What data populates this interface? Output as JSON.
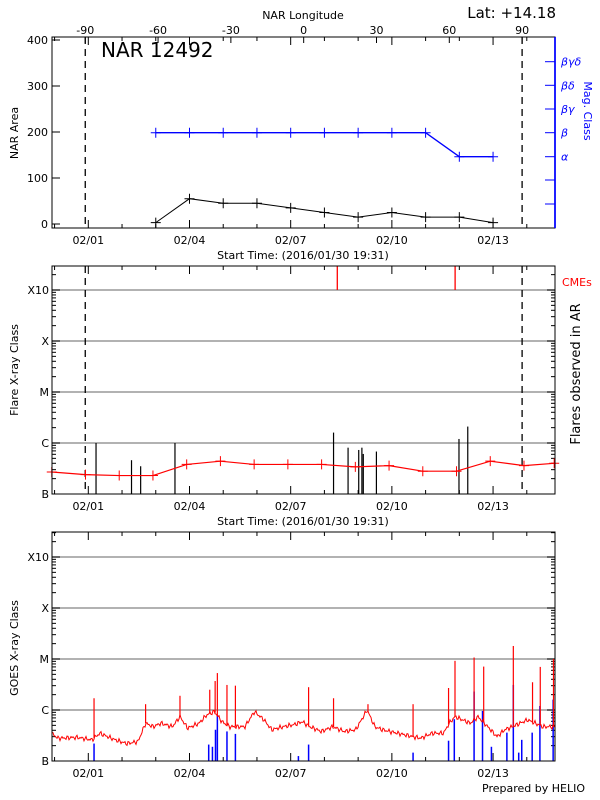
{
  "header": {
    "lat_label": "Lat: +14.18",
    "region_label": "NAR 12492"
  },
  "footer": {
    "credit": "Prepared by HELIO"
  },
  "colors": {
    "axis": "#000000",
    "area": "#000000",
    "mag_class": "#0000ff",
    "flare_avg": "#ff0000",
    "cme": "#ff0000",
    "goes_flux": "#ff0000",
    "goes_events": "#0000ff",
    "grid": "#999999"
  },
  "chart_data": [
    {
      "type": "line",
      "title": "NAR 12492",
      "xlabel": "Start Time: (2016/01/30 19:31)",
      "ylabel": "NAR Area",
      "right_ylabel": "Mag. Class",
      "top_xlabel": "NAR Longitude",
      "ylim": [
        0,
        400
      ],
      "yticks": [
        "0",
        "100",
        "200",
        "300",
        "400"
      ],
      "xticks": [
        "02/01",
        "02/04",
        "02/07",
        "02/10",
        "02/13"
      ],
      "top_xticks": [
        "-90",
        "-60",
        "-30",
        "0",
        "30",
        "60",
        "90"
      ],
      "right_yticks": [
        "α",
        "β",
        "βγ",
        "βδ",
        "βγδ"
      ],
      "limb_longitudes": [
        -90,
        90
      ],
      "limb_times": [
        "01/31 21:50",
        "02/13 20:40"
      ],
      "area_series": [
        {
          "t": "02/03 00:00",
          "v": 3
        },
        {
          "t": "02/04 00:00",
          "v": 55
        },
        {
          "t": "02/05 00:00",
          "v": 45
        },
        {
          "t": "02/06 00:00",
          "v": 45
        },
        {
          "t": "02/07 00:00",
          "v": 35
        },
        {
          "t": "02/08 00:00",
          "v": 25
        },
        {
          "t": "02/09 00:00",
          "v": 15
        },
        {
          "t": "02/10 00:00",
          "v": 25
        },
        {
          "t": "02/11 00:00",
          "v": 15
        },
        {
          "t": "02/12 00:00",
          "v": 15
        },
        {
          "t": "02/13 00:00",
          "v": 3
        }
      ],
      "mag_class_series": [
        {
          "t": "02/03 00:00",
          "cls": "β"
        },
        {
          "t": "02/04 00:00",
          "cls": "β"
        },
        {
          "t": "02/05 00:00",
          "cls": "β"
        },
        {
          "t": "02/06 00:00",
          "cls": "β"
        },
        {
          "t": "02/07 00:00",
          "cls": "β"
        },
        {
          "t": "02/08 00:00",
          "cls": "β"
        },
        {
          "t": "02/09 00:00",
          "cls": "β"
        },
        {
          "t": "02/10 00:00",
          "cls": "β"
        },
        {
          "t": "02/11 00:00",
          "cls": "β"
        },
        {
          "t": "02/12 00:00",
          "cls": "α"
        },
        {
          "t": "02/13 00:00",
          "cls": "α"
        }
      ]
    },
    {
      "type": "bar",
      "xlabel": "Start Time: (2016/01/30 19:31)",
      "ylabel": "Flare X-ray Class",
      "right_ylabel": "Flares observed in AR",
      "cme_label": "CMEs",
      "yscale": "log",
      "yticks": [
        "B",
        "C",
        "M",
        "X",
        "X10"
      ],
      "ylim_flux": [
        1e-07,
        0.003
      ],
      "grid": true,
      "xticks": [
        "02/01",
        "02/04",
        "02/07",
        "02/10",
        "02/13"
      ],
      "limb_times": [
        "01/31 21:50",
        "02/13 20:40"
      ],
      "flares": [
        {
          "t": "02/01 05:30",
          "flux": 1e-06
        },
        {
          "t": "02/02 06:45",
          "flux": 4.6e-07
        },
        {
          "t": "02/02 13:15",
          "flux": 3.5e-07
        },
        {
          "t": "02/03 13:40",
          "flux": 1e-06
        },
        {
          "t": "02/08 06:30",
          "flux": 1.6e-06
        },
        {
          "t": "02/08 16:50",
          "flux": 8.1e-07
        },
        {
          "t": "02/09 00:25",
          "flux": 7.3e-07
        },
        {
          "t": "02/09 02:40",
          "flux": 8.1e-07
        },
        {
          "t": "02/09 03:40",
          "flux": 6.1e-07
        },
        {
          "t": "02/09 13:00",
          "flux": 6.8e-07
        },
        {
          "t": "02/11 23:45",
          "flux": 1.2e-06
        },
        {
          "t": "02/12 06:00",
          "flux": 2.1e-06
        }
      ],
      "cmes": [
        {
          "t": "02/08 09:10"
        },
        {
          "t": "02/11 21:00"
        }
      ],
      "background_series": [
        {
          "t": "01/30 22:00",
          "flux": 2.7e-07
        },
        {
          "t": "01/31 22:00",
          "flux": 2.4e-07
        },
        {
          "t": "02/01 22:00",
          "flux": 2.3e-07
        },
        {
          "t": "02/02 22:00",
          "flux": 2.3e-07
        },
        {
          "t": "02/03 22:00",
          "flux": 3.8e-07
        },
        {
          "t": "02/04 22:00",
          "flux": 4.4e-07
        },
        {
          "t": "02/05 22:00",
          "flux": 3.8e-07
        },
        {
          "t": "02/06 22:00",
          "flux": 3.8e-07
        },
        {
          "t": "02/07 22:00",
          "flux": 3.8e-07
        },
        {
          "t": "02/08 22:00",
          "flux": 3.4e-07
        },
        {
          "t": "02/09 22:00",
          "flux": 3.6e-07
        },
        {
          "t": "02/10 22:00",
          "flux": 2.8e-07
        },
        {
          "t": "02/11 22:00",
          "flux": 2.8e-07
        },
        {
          "t": "02/12 22:00",
          "flux": 4.4e-07
        },
        {
          "t": "02/13 22:00",
          "flux": 3.6e-07
        },
        {
          "t": "02/14 19:30",
          "flux": 4e-07
        }
      ]
    },
    {
      "type": "line",
      "ylabel": "GOES X-ray Class",
      "yscale": "log",
      "yticks": [
        "B",
        "C",
        "M",
        "X",
        "X10"
      ],
      "ylim_flux": [
        1e-07,
        0.003
      ],
      "grid": true,
      "xticks": [
        "02/01",
        "02/04",
        "02/07",
        "02/10",
        "02/13"
      ],
      "flux_series": [
        {
          "t": "01/30 22:10",
          "flux": 3.5e-07
        },
        {
          "t": "01/31 02:15",
          "flux": 2.8e-07
        },
        {
          "t": "01/31 16:10",
          "flux": 2.9e-07
        },
        {
          "t": "02/01 02:40",
          "flux": 2.6e-07
        },
        {
          "t": "02/01 08:10",
          "flux": 3.5e-07
        },
        {
          "t": "02/01 19:00",
          "flux": 2.6e-07
        },
        {
          "t": "02/02 03:10",
          "flux": 2.2e-07
        },
        {
          "t": "02/02 11:20",
          "flux": 2.4e-07
        },
        {
          "t": "02/02 16:46",
          "flux": 5.5e-07
        },
        {
          "t": "02/02 22:12",
          "flux": 4.7e-07
        },
        {
          "t": "02/03 03:40",
          "flux": 5.5e-07
        },
        {
          "t": "02/03 11:47",
          "flux": 4.7e-07
        },
        {
          "t": "02/03 17:14",
          "flux": 7.4e-07
        },
        {
          "t": "02/03 22:40",
          "flux": 4.4e-07
        },
        {
          "t": "02/04 06:49",
          "flux": 5.5e-07
        },
        {
          "t": "02/04 12:16",
          "flux": 8e-07
        },
        {
          "t": "02/04 17:41",
          "flux": 9.3e-07
        },
        {
          "t": "02/04 23:08",
          "flux": 5.9e-07
        },
        {
          "t": "02/05 04:34",
          "flux": 4.7e-07
        },
        {
          "t": "02/05 15:26",
          "flux": 4.7e-07
        },
        {
          "t": "02/05 22:13",
          "flux": 9.3e-07
        },
        {
          "t": "02/06 05:01",
          "flux": 6.4e-07
        },
        {
          "t": "02/06 10:28",
          "flux": 4.1e-07
        },
        {
          "t": "02/06 18:37",
          "flux": 4.7e-07
        },
        {
          "t": "02/07 02:47",
          "flux": 5.2e-07
        },
        {
          "t": "02/07 08:12",
          "flux": 5.9e-07
        },
        {
          "t": "02/07 13:39",
          "flux": 4.7e-07
        },
        {
          "t": "02/07 21:48",
          "flux": 3.8e-07
        },
        {
          "t": "02/08 05:57",
          "flux": 4.7e-07
        },
        {
          "t": "02/08 14:07",
          "flux": 3.8e-07
        },
        {
          "t": "02/08 22:16",
          "flux": 4.1e-07
        },
        {
          "t": "02/09 06:25",
          "flux": 1e-06
        },
        {
          "t": "02/09 11:51",
          "flux": 4.7e-07
        },
        {
          "t": "02/09 17:17",
          "flux": 4.1e-07
        },
        {
          "t": "02/10 04:09",
          "flux": 3.5e-07
        },
        {
          "t": "02/10 15:01",
          "flux": 3e-07
        },
        {
          "t": "02/10 20:28",
          "flux": 2.8e-07
        },
        {
          "t": "02/11 04:37",
          "flux": 3.5e-07
        },
        {
          "t": "02/11 12:46",
          "flux": 3.5e-07
        },
        {
          "t": "02/11 16:51",
          "flux": 5.5e-07
        },
        {
          "t": "02/11 20:56",
          "flux": 7.4e-07
        },
        {
          "t": "02/12 02:21",
          "flux": 6.4e-07
        },
        {
          "t": "02/12 07:48",
          "flux": 5.5e-07
        },
        {
          "t": "02/12 13:14",
          "flux": 7.4e-07
        },
        {
          "t": "02/12 18:40",
          "flux": 5.2e-07
        },
        {
          "t": "02/13 02:50",
          "flux": 3e-07
        },
        {
          "t": "02/13 08:15",
          "flux": 4.1e-07
        },
        {
          "t": "02/13 13:42",
          "flux": 4.7e-07
        },
        {
          "t": "02/13 19:08",
          "flux": 5.5e-07
        },
        {
          "t": "02/14 00:35",
          "flux": 6.4e-07
        },
        {
          "t": "02/14 06:00",
          "flux": 5.5e-07
        },
        {
          "t": "02/14 11:27",
          "flux": 4.7e-07
        },
        {
          "t": "02/14 19:36",
          "flux": 4.7e-07
        }
      ],
      "flux_peaks": [
        {
          "t": "02/01 04:05",
          "flux": 1.7e-06
        },
        {
          "t": "02/02 16:46",
          "flux": 1.3e-06
        },
        {
          "t": "02/03 17:14",
          "flux": 1.9e-06
        },
        {
          "t": "02/04 14:25",
          "flux": 2.5e-06
        },
        {
          "t": "02/04 18:15",
          "flux": 3.7e-06
        },
        {
          "t": "02/04 19:50",
          "flux": 5.3e-06
        },
        {
          "t": "02/05 02:40",
          "flux": 3.1e-06
        },
        {
          "t": "02/05 08:40",
          "flux": 3e-06
        },
        {
          "t": "02/07 12:45",
          "flux": 2.8e-06
        },
        {
          "t": "02/08 06:30",
          "flux": 1.7e-06
        },
        {
          "t": "02/09 07:00",
          "flux": 1.3e-06
        },
        {
          "t": "02/10 15:05",
          "flux": 1.3e-06
        },
        {
          "t": "02/11 16:20",
          "flux": 2.7e-06
        },
        {
          "t": "02/11 20:55",
          "flux": 9.2e-06
        },
        {
          "t": "02/12 10:30",
          "flux": 1.07e-05
        },
        {
          "t": "02/12 17:20",
          "flux": 7.1e-06
        },
        {
          "t": "02/13 14:25",
          "flux": 1.8e-05
        },
        {
          "t": "02/14 04:05",
          "flux": 3.5e-06
        },
        {
          "t": "02/14 09:35",
          "flux": 7e-06
        },
        {
          "t": "02/14 19:00",
          "flux": 1e-05
        }
      ],
      "events": [
        {
          "t": "02/01 04:05",
          "flux": 2.2e-07
        },
        {
          "t": "02/04 13:40",
          "flux": 2.1e-07
        },
        {
          "t": "02/04 16:20",
          "flux": 1.9e-07
        },
        {
          "t": "02/04 18:30",
          "flux": 4.1e-07
        },
        {
          "t": "02/04 19:50",
          "flux": 8e-07
        },
        {
          "t": "02/05 02:40",
          "flux": 3.8e-07
        },
        {
          "t": "02/05 08:40",
          "flux": 3.4e-07
        },
        {
          "t": "02/07 05:30",
          "flux": 1.25e-07
        },
        {
          "t": "02/07 12:45",
          "flux": 2.1e-07
        },
        {
          "t": "02/10 15:05",
          "flux": 1.46e-07
        },
        {
          "t": "02/11 16:20",
          "flux": 2.5e-07
        },
        {
          "t": "02/11 20:25",
          "flux": 6.6e-07
        },
        {
          "t": "02/12 10:30",
          "flux": 2.3e-06
        },
        {
          "t": "02/12 16:30",
          "flux": 9.6e-07
        },
        {
          "t": "02/12 22:50",
          "flux": 1.9e-07
        },
        {
          "t": "02/13 09:50",
          "flux": 3.6e-07
        },
        {
          "t": "02/13 14:25",
          "flux": 3.1e-06
        },
        {
          "t": "02/13 18:15",
          "flux": 1.46e-07
        },
        {
          "t": "02/13 20:25",
          "flux": 2.6e-07
        },
        {
          "t": "02/14 03:50",
          "flux": 3.6e-07
        },
        {
          "t": "02/14 09:20",
          "flux": 1.2e-06
        },
        {
          "t": "02/14 18:45",
          "flux": 1.6e-06
        }
      ]
    }
  ]
}
